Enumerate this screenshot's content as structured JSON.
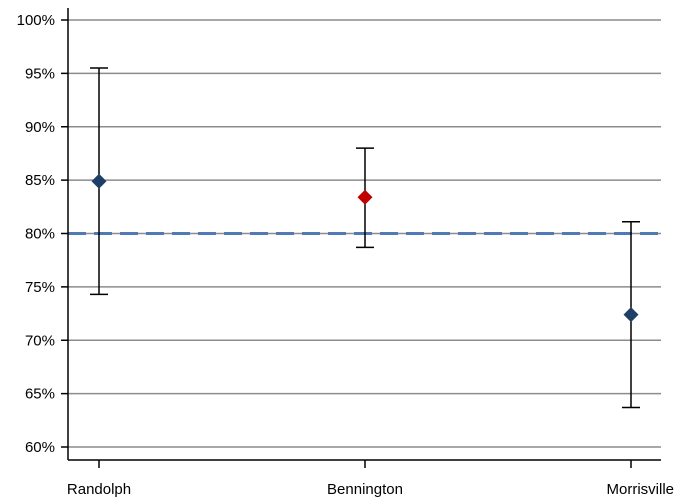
{
  "chart_data": {
    "type": "scatter",
    "categories": [
      "Randolph",
      "Bennington",
      "Morrisville"
    ],
    "y_tick_labels": [
      "60%",
      "65%",
      "70%",
      "75%",
      "80%",
      "85%",
      "90%",
      "95%",
      "100%"
    ],
    "y_ticks": [
      60,
      65,
      70,
      75,
      80,
      85,
      90,
      95,
      100
    ],
    "ylim": [
      60,
      100
    ],
    "grid": true,
    "reference_line": {
      "value": 80,
      "color": "#4f7ab3",
      "style": "dashed"
    },
    "points": [
      {
        "category": "Randolph",
        "value": 84.9,
        "lower": 74.3,
        "upper": 95.5,
        "color": "#1f3f66"
      },
      {
        "category": "Bennington",
        "value": 83.4,
        "lower": 78.7,
        "upper": 88.0,
        "color": "#c00000"
      },
      {
        "category": "Morrisville",
        "value": 72.4,
        "lower": 63.7,
        "upper": 81.1,
        "color": "#1f3f66"
      }
    ],
    "colors": {
      "axis": "#000000",
      "grid": "#8c8c8c"
    }
  }
}
